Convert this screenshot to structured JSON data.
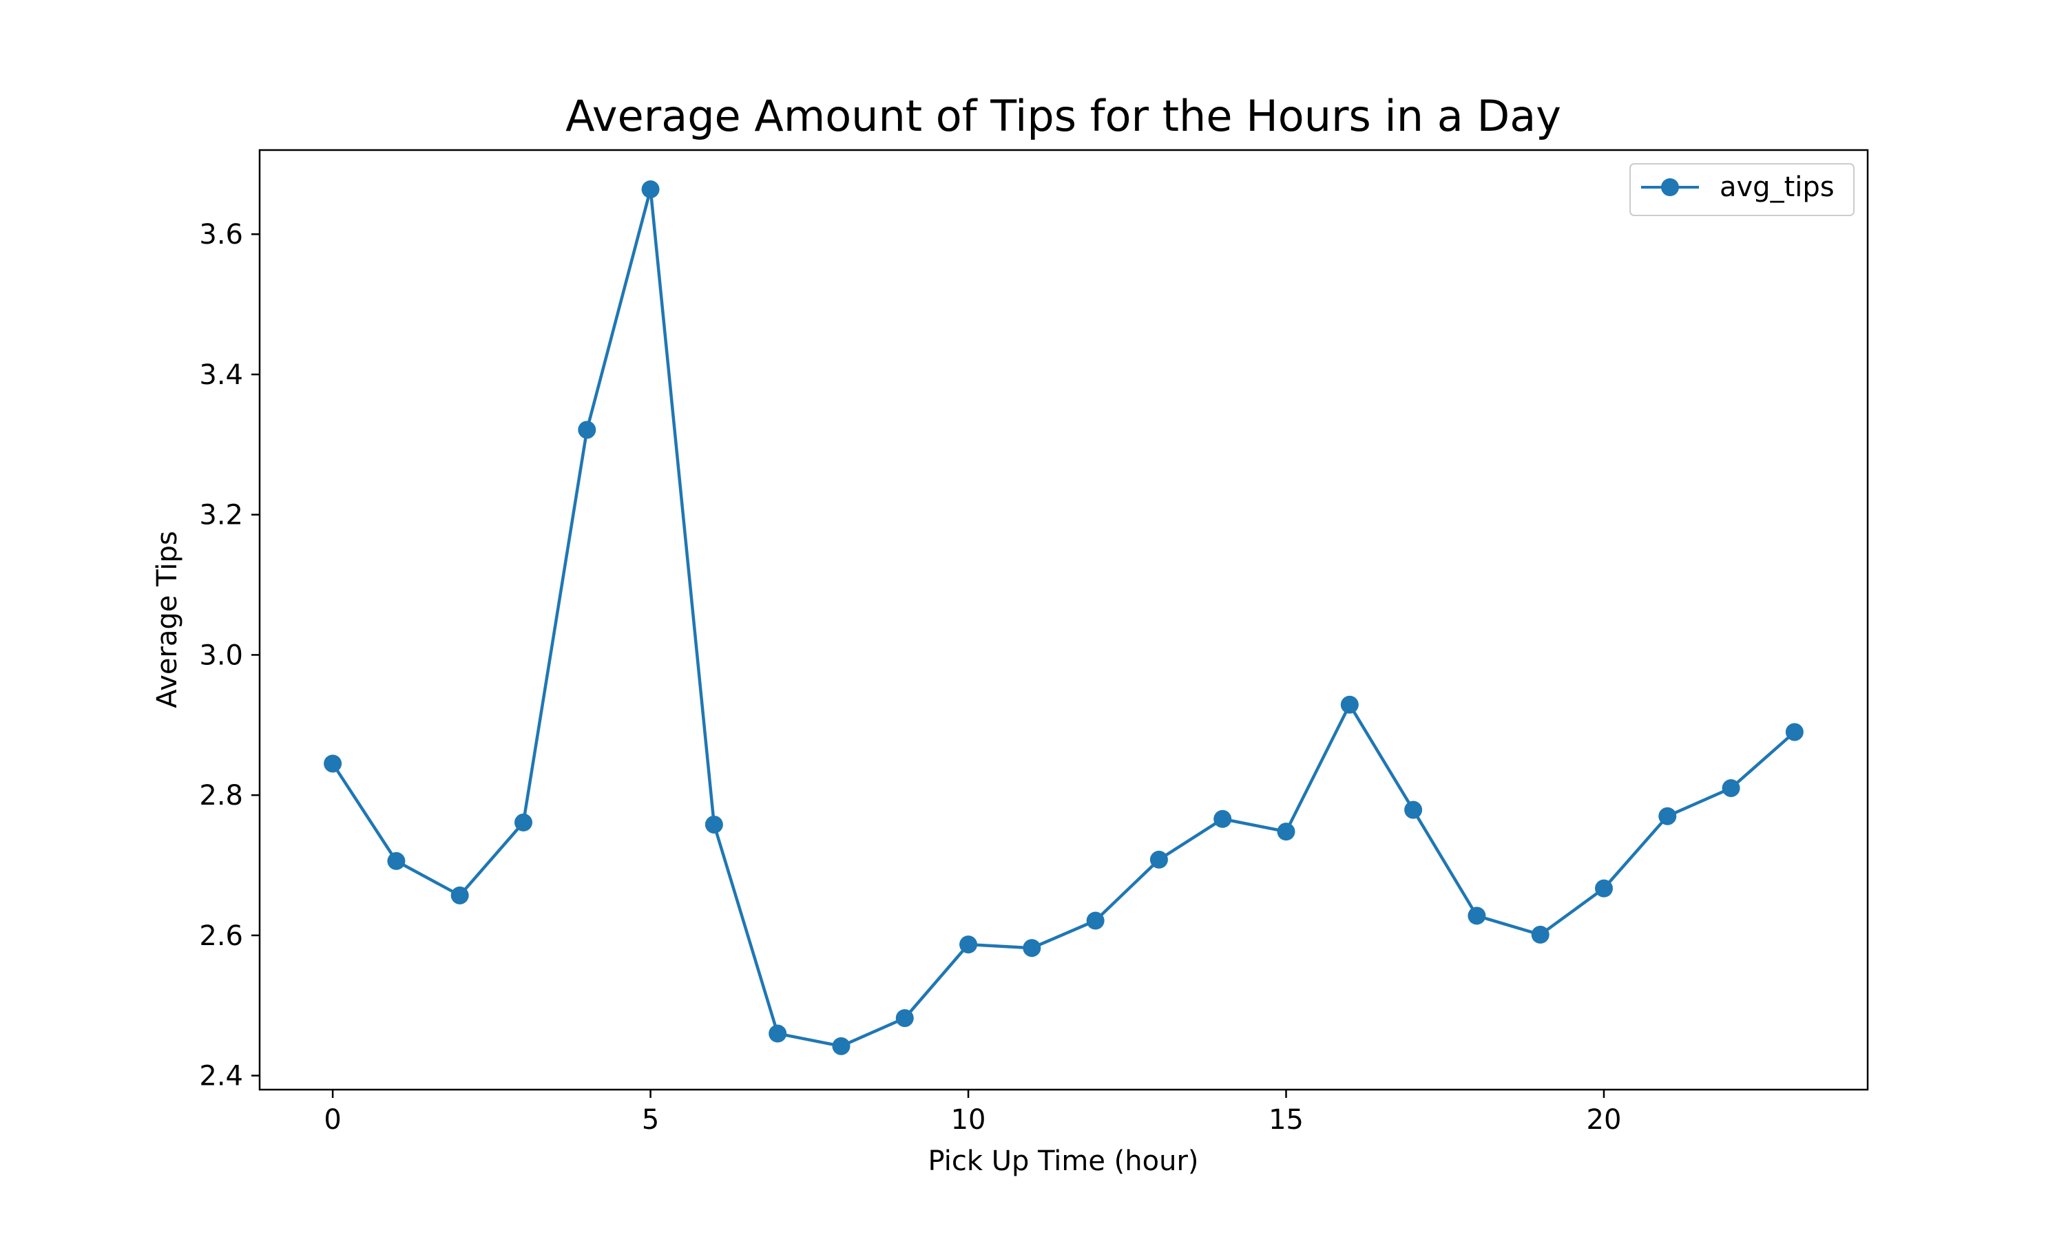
{
  "chart_data": {
    "type": "line",
    "title": "Average Amount of Tips for the Hours in a Day",
    "xlabel": "Pick Up Time (hour)",
    "ylabel": "Average Tips",
    "xlim": [
      -1.15,
      24.15
    ],
    "ylim": [
      2.38,
      3.72
    ],
    "x_ticks": [
      0,
      5,
      10,
      15,
      20
    ],
    "x_tick_labels": [
      "0",
      "5",
      "10",
      "15",
      "20"
    ],
    "y_ticks": [
      2.4,
      2.6,
      2.8,
      3.0,
      3.2,
      3.4,
      3.6
    ],
    "y_tick_labels": [
      "2.4",
      "2.6",
      "2.8",
      "3.0",
      "3.2",
      "3.4",
      "3.6"
    ],
    "grid": false,
    "legend_position": "top-right",
    "series": [
      {
        "name": "avg_tips",
        "color": "#1f77b4",
        "marker": "circle",
        "x": [
          0,
          1,
          2,
          3,
          4,
          5,
          6,
          7,
          8,
          9,
          10,
          11,
          12,
          13,
          14,
          15,
          16,
          17,
          18,
          19,
          20,
          21,
          22,
          23
        ],
        "values": [
          2.845,
          2.706,
          2.657,
          2.761,
          3.321,
          3.664,
          2.758,
          2.46,
          2.442,
          2.482,
          2.587,
          2.582,
          2.621,
          2.708,
          2.766,
          2.748,
          2.929,
          2.779,
          2.628,
          2.601,
          2.667,
          2.77,
          2.81,
          2.89
        ]
      }
    ]
  }
}
